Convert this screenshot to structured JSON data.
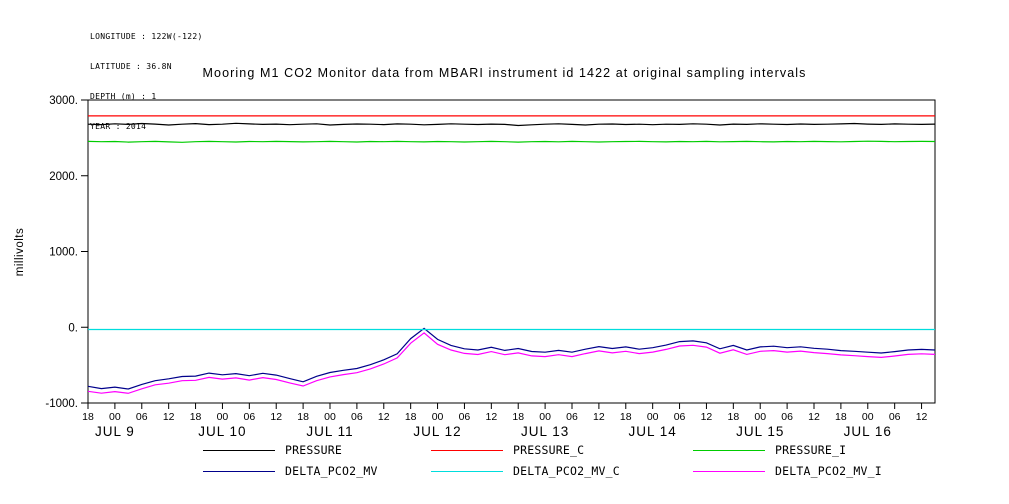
{
  "header": {
    "lines": [
      "LONGITUDE : 122W(-122)",
      "LATITUDE : 36.8N",
      "DEPTH (m) : 1",
      "YEAR : 2014"
    ]
  },
  "chart_data": {
    "type": "line",
    "title": "Mooring M1 CO2 Monitor data from MBARI instrument id 1422 at original sampling intervals",
    "xlabel": "",
    "ylabel": "millivolts",
    "ylim": [
      -1000,
      3000
    ],
    "y_ticks": [
      -1000,
      0,
      1000,
      2000,
      3000
    ],
    "y_tick_labels": [
      "-1000.",
      "0.",
      "1000.",
      "2000.",
      "3000."
    ],
    "x_start_hours": 0,
    "x_end_hours": 189,
    "x_step_hours": 3,
    "x_tick_interval_hours": 6,
    "x_tick_labels": [
      "18",
      "00",
      "06",
      "12",
      "18",
      "00",
      "06",
      "12",
      "18",
      "00",
      "06",
      "12",
      "18",
      "00",
      "06",
      "12",
      "18",
      "00",
      "06",
      "12",
      "18",
      "00",
      "06",
      "12",
      "18",
      "00",
      "06",
      "12",
      "18",
      "00",
      "06",
      "12"
    ],
    "day_labels": [
      {
        "label": "JUL 9",
        "hour": 6
      },
      {
        "label": "JUL 10",
        "hour": 30
      },
      {
        "label": "JUL 11",
        "hour": 54
      },
      {
        "label": "JUL 12",
        "hour": 78
      },
      {
        "label": "JUL 13",
        "hour": 102
      },
      {
        "label": "JUL 14",
        "hour": 126
      },
      {
        "label": "JUL 15",
        "hour": 150
      },
      {
        "label": "JUL 16",
        "hour": 174
      }
    ],
    "grid": false,
    "legend_position": "bottom",
    "series": [
      {
        "name": "PRESSURE",
        "color": "#000000",
        "values": [
          2680,
          2675,
          2686,
          2678,
          2690,
          2682,
          2670,
          2680,
          2688,
          2675,
          2680,
          2692,
          2685,
          2678,
          2682,
          2674,
          2680,
          2686,
          2670,
          2678,
          2683,
          2680,
          2675,
          2685,
          2680,
          2672,
          2678,
          2686,
          2680,
          2676,
          2682,
          2678,
          2664,
          2672,
          2680,
          2686,
          2678,
          2670,
          2680,
          2683,
          2677,
          2680,
          2674,
          2681,
          2678,
          2686,
          2680,
          2670,
          2682,
          2678,
          2686,
          2680,
          2676,
          2683,
          2678,
          2680,
          2685,
          2690,
          2682,
          2678,
          2684,
          2680,
          2678,
          2682
        ]
      },
      {
        "name": "PRESSURE_C",
        "color": "#ff0000",
        "constant": 2790
      },
      {
        "name": "PRESSURE_I",
        "color": "#00cc00",
        "values": [
          2454,
          2449,
          2452,
          2444,
          2450,
          2454,
          2447,
          2442,
          2449,
          2454,
          2450,
          2446,
          2452,
          2449,
          2454,
          2451,
          2447,
          2450,
          2454,
          2449,
          2446,
          2452,
          2449,
          2454,
          2450,
          2447,
          2452,
          2449,
          2446,
          2450,
          2454,
          2449,
          2444,
          2450,
          2452,
          2448,
          2454,
          2450,
          2446,
          2449,
          2452,
          2454,
          2449,
          2447,
          2452,
          2450,
          2454,
          2448,
          2451,
          2454,
          2450,
          2447,
          2452,
          2449,
          2454,
          2451,
          2448,
          2452,
          2456,
          2454,
          2450,
          2452,
          2454,
          2452
        ]
      },
      {
        "name": "DELTA_PCO2_MV",
        "color": "#00008b",
        "values": [
          -780,
          -810,
          -790,
          -815,
          -755,
          -705,
          -680,
          -650,
          -645,
          -605,
          -628,
          -612,
          -640,
          -608,
          -632,
          -678,
          -720,
          -648,
          -598,
          -568,
          -545,
          -495,
          -430,
          -350,
          -150,
          -15,
          -160,
          -240,
          -285,
          -300,
          -265,
          -305,
          -280,
          -320,
          -330,
          -305,
          -330,
          -290,
          -255,
          -280,
          -260,
          -290,
          -270,
          -235,
          -190,
          -180,
          -205,
          -285,
          -240,
          -300,
          -260,
          -250,
          -270,
          -258,
          -278,
          -290,
          -308,
          -318,
          -330,
          -340,
          -322,
          -300,
          -292,
          -300
        ]
      },
      {
        "name": "DELTA_PCO2_MV_C",
        "color": "#00dddd",
        "constant": -30
      },
      {
        "name": "DELTA_PCO2_MV_I",
        "color": "#ff00ff",
        "values": [
          -845,
          -870,
          -850,
          -872,
          -812,
          -760,
          -738,
          -705,
          -700,
          -662,
          -685,
          -668,
          -698,
          -665,
          -690,
          -735,
          -775,
          -705,
          -655,
          -625,
          -600,
          -550,
          -485,
          -405,
          -210,
          -75,
          -225,
          -300,
          -345,
          -360,
          -322,
          -362,
          -338,
          -378,
          -388,
          -362,
          -388,
          -348,
          -312,
          -338,
          -318,
          -348,
          -328,
          -292,
          -248,
          -238,
          -262,
          -342,
          -298,
          -358,
          -318,
          -308,
          -328,
          -315,
          -335,
          -348,
          -365,
          -375,
          -388,
          -398,
          -380,
          -358,
          -350,
          -358
        ]
      }
    ]
  }
}
